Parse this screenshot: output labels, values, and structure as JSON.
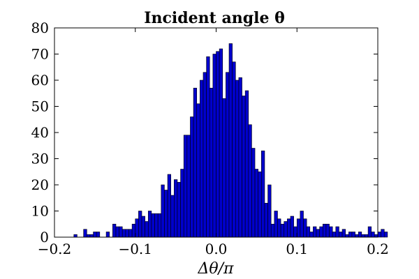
{
  "chart_data": {
    "type": "bar",
    "title": "Incident angle θ",
    "xlabel": "Δθ/π",
    "ylabel": "",
    "xlim": [
      -0.2,
      0.2
    ],
    "ylim": [
      0,
      80
    ],
    "x_ticks": [
      "−0.2",
      "−0.1",
      "0.0",
      "0.1",
      "0.2"
    ],
    "y_ticks": [
      "0",
      "10",
      "20",
      "30",
      "40",
      "50",
      "60",
      "70",
      "80"
    ],
    "grid": false,
    "bar_color": "#0000cc",
    "bin_width": 0.004,
    "bins_start": -0.18,
    "values": [
      0,
      1,
      0,
      0,
      3,
      1,
      1,
      2,
      2,
      0,
      0,
      2,
      0,
      5,
      4,
      4,
      3,
      3,
      3,
      5,
      7,
      10,
      8,
      6,
      10,
      9,
      9,
      9,
      20,
      18,
      24,
      16,
      22,
      21,
      26,
      39,
      39,
      46,
      57,
      51,
      60,
      63,
      69,
      57,
      70,
      71,
      72,
      53,
      63,
      74,
      67,
      60,
      61,
      54,
      56,
      43,
      34,
      26,
      25,
      33,
      13,
      20,
      5,
      10,
      7,
      5,
      6,
      7,
      8,
      4,
      7,
      10,
      7,
      4,
      2,
      4,
      3,
      4,
      5,
      5,
      4,
      2,
      4,
      2,
      3,
      1,
      2,
      2,
      1,
      2,
      1,
      1,
      4,
      2,
      1,
      2,
      3,
      2
    ]
  }
}
